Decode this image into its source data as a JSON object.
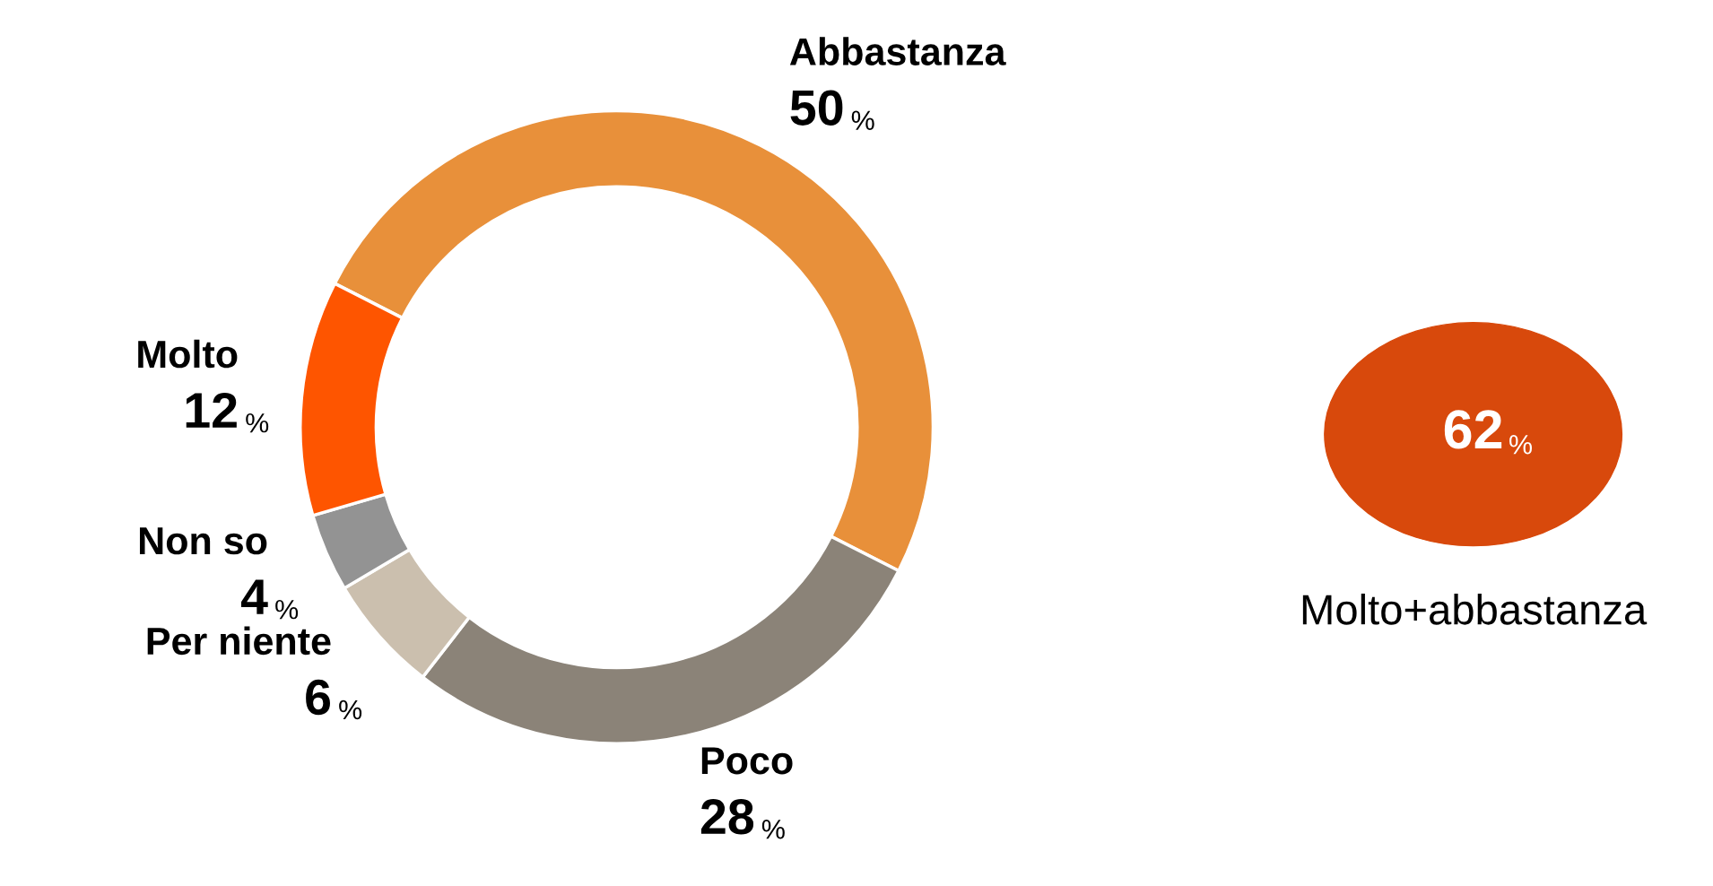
{
  "chart_data": [
    {
      "type": "donut",
      "categories": [
        "Abbastanza",
        "Poco",
        "Per niente",
        "Non so",
        "Molto"
      ],
      "values": [
        50,
        28,
        6,
        4,
        12
      ],
      "colors": [
        "#e8903a",
        "#8b8378",
        "#cbbfae",
        "#939393",
        "#fe5500"
      ],
      "value_labels": [
        "50%",
        "28%",
        "6%",
        "4%",
        "12%"
      ]
    },
    {
      "type": "other",
      "color": "#d8490c",
      "annotations": [
        "62%",
        "Molto+abbastanza"
      ]
    }
  ]
}
